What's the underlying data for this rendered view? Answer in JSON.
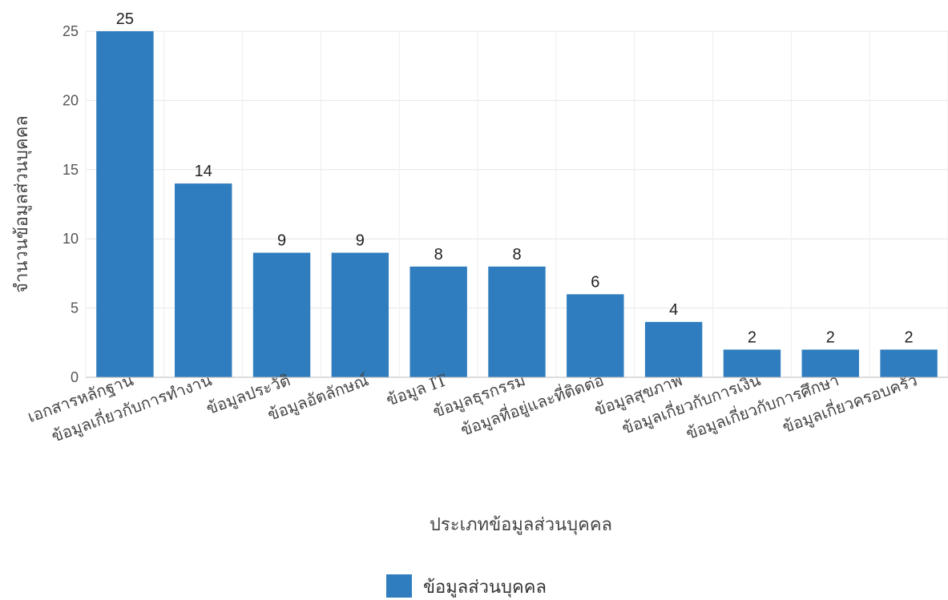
{
  "chart_data": {
    "type": "bar",
    "categories": [
      "เอกสารหลักฐาน",
      "ข้อมูลเกี่ยวกับการทำงาน",
      "ข้อมูลประวัติ",
      "ข้อมูลอัตลักษณ์",
      "ข้อมูล IT",
      "ข้อมูลธุรกรรม",
      "ข้อมูลที่อยู่และที่ติดต่อ",
      "ข้อมูลสุขภาพ",
      "ข้อมูลเกี่ยวกับการเงิน",
      "ข้อมูลเกี่ยวกับการศึกษา",
      "ข้อมูลเกี่ยวครอบครัว"
    ],
    "series": [
      {
        "name": "ข้อมูลส่วนบุคคล",
        "values": [
          25,
          14,
          9,
          9,
          8,
          8,
          6,
          4,
          2,
          2,
          2
        ],
        "color": "#2f7dbe"
      }
    ],
    "xlabel": "ประเภทข้อมูลส่วนบุคคล",
    "ylabel": "จำนวนข้อมูลส่วนบุคคล",
    "ylim": [
      0,
      25
    ],
    "yticks": [
      0,
      5,
      10,
      15,
      20,
      25
    ],
    "grid": true,
    "legend_position": "bottom-center"
  }
}
